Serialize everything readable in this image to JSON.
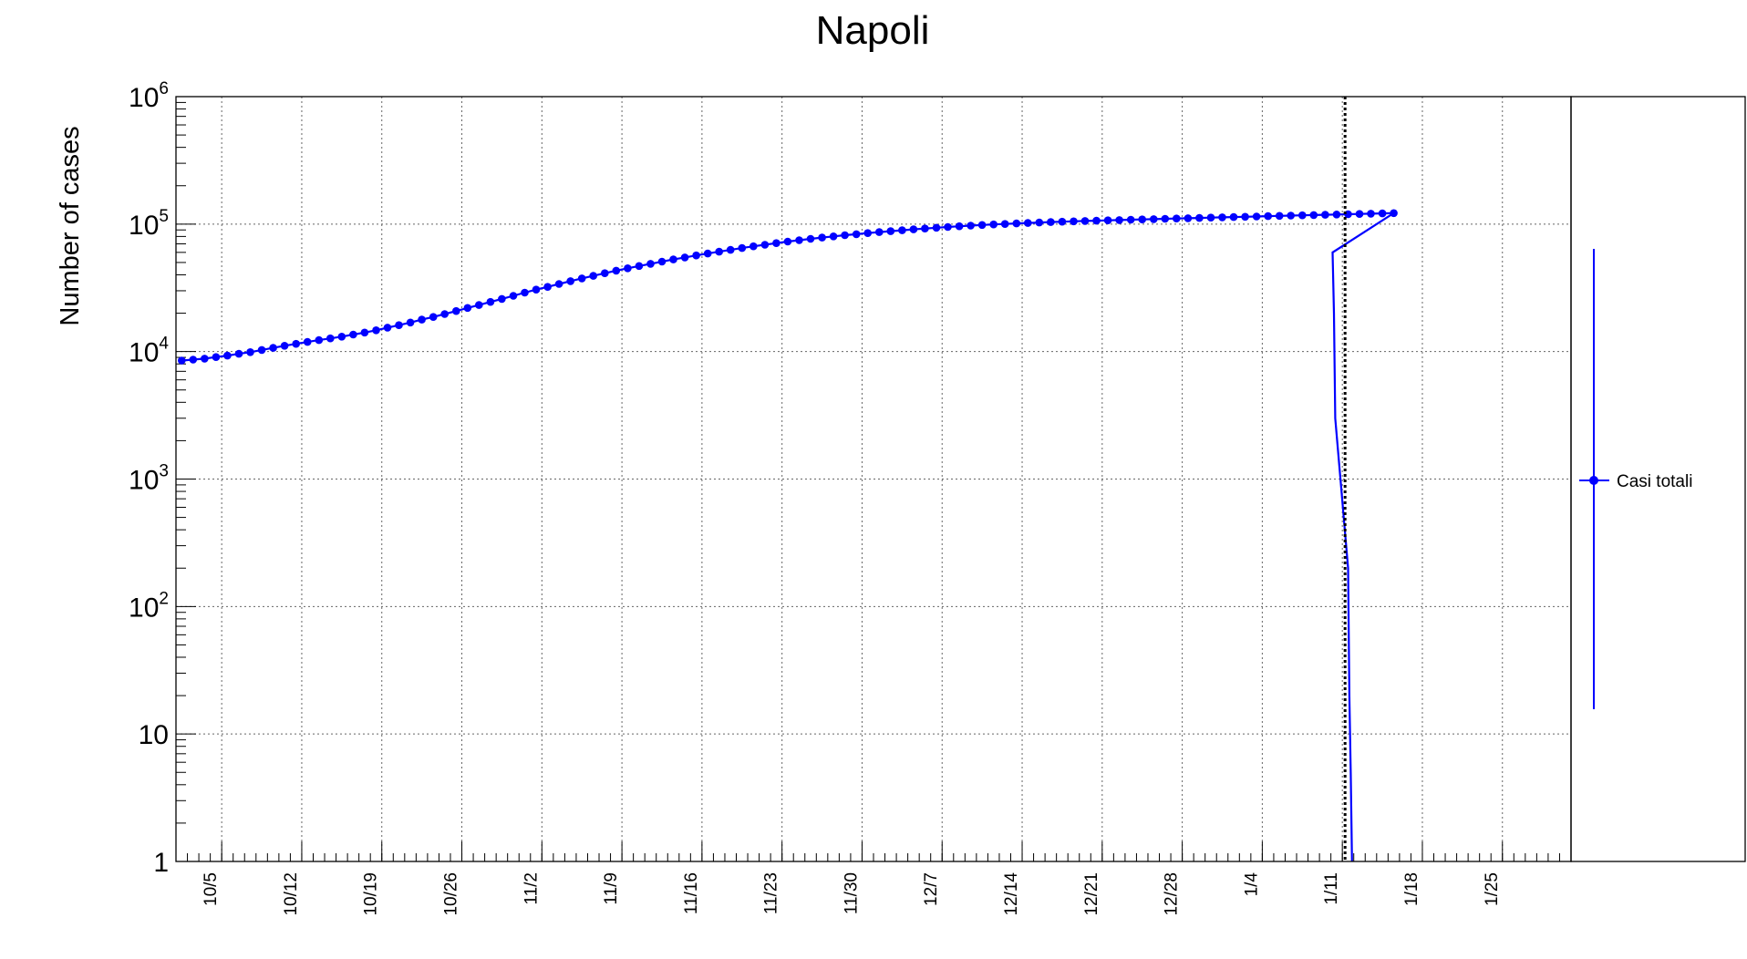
{
  "chart_data": {
    "type": "line",
    "title": "Napoli",
    "xlabel": "",
    "ylabel": "Number of cases",
    "y_scale": "log",
    "ylim": [
      1,
      1000000
    ],
    "xlim": [
      "2020-10-01",
      "2021-01-31"
    ],
    "grid": true,
    "x_tick_labels": [
      {
        "date": "2020-10-05",
        "label": "10/5"
      },
      {
        "date": "2020-10-12",
        "label": "10/12"
      },
      {
        "date": "2020-10-19",
        "label": "10/19"
      },
      {
        "date": "2020-10-26",
        "label": "10/26"
      },
      {
        "date": "2020-11-02",
        "label": "11/2"
      },
      {
        "date": "2020-11-09",
        "label": "11/9"
      },
      {
        "date": "2020-11-16",
        "label": "11/16"
      },
      {
        "date": "2020-11-23",
        "label": "11/23"
      },
      {
        "date": "2020-11-30",
        "label": "11/30"
      },
      {
        "date": "2020-12-07",
        "label": "12/7"
      },
      {
        "date": "2020-12-14",
        "label": "12/14"
      },
      {
        "date": "2020-12-21",
        "label": "12/21"
      },
      {
        "date": "2020-12-28",
        "label": "12/28"
      },
      {
        "date": "2021-01-04",
        "label": "1/4"
      },
      {
        "date": "2021-01-11",
        "label": "1/11"
      },
      {
        "date": "2021-01-18",
        "label": "1/18"
      },
      {
        "date": "2021-01-25",
        "label": "1/25"
      }
    ],
    "y_tick_labels": [
      {
        "value": 1,
        "base": "1",
        "sup": ""
      },
      {
        "value": 10,
        "base": "10",
        "sup": ""
      },
      {
        "value": 100,
        "base": "10",
        "sup": "2"
      },
      {
        "value": 1000,
        "base": "10",
        "sup": "3"
      },
      {
        "value": 10000,
        "base": "10",
        "sup": "4"
      },
      {
        "value": 100000,
        "base": "10",
        "sup": "5"
      },
      {
        "value": 1000000,
        "base": "10",
        "sup": "6"
      }
    ],
    "vertical_marker": "2021-01-11",
    "legend": {
      "position": "right",
      "entry": "Casi totali"
    },
    "series": [
      {
        "name": "Casi totali",
        "color": "#0000ff",
        "start_date": "2020-10-01",
        "values": [
          8500,
          8650,
          8800,
          9050,
          9300,
          9600,
          9900,
          10300,
          10700,
          11100,
          11500,
          11900,
          12300,
          12700,
          13100,
          13600,
          14100,
          14700,
          15400,
          16100,
          16900,
          17800,
          18700,
          19700,
          20800,
          22000,
          23200,
          24500,
          25900,
          27400,
          29000,
          30600,
          32200,
          33900,
          35700,
          37500,
          39300,
          41200,
          43100,
          45000,
          46900,
          48800,
          50800,
          52800,
          54800,
          56800,
          58800,
          60800,
          62800,
          64900,
          66900,
          68900,
          70900,
          72900,
          74800,
          76600,
          78400,
          80100,
          81800,
          83400,
          85000,
          86500,
          88000,
          89500,
          90900,
          92300,
          93600,
          94900,
          96100,
          97300,
          98400,
          99400,
          100300,
          101200,
          102100,
          102900,
          103700,
          104400,
          105100,
          105800,
          106400,
          107000,
          107600,
          108200,
          108800,
          109400,
          110000,
          110600,
          111200,
          111800,
          112400,
          113000,
          113600,
          114200,
          114800,
          115400,
          116000,
          116600,
          117200,
          117800,
          118400,
          119000,
          119600,
          120200,
          120800,
          121400,
          122000
        ],
        "tail": [
          {
            "date": "2021-01-10",
            "value": 60000
          },
          {
            "date": "2021-01-10",
            "value": 20000
          },
          {
            "date": "2021-01-10",
            "value": 3000
          },
          {
            "date": "2021-01-11",
            "value": 200
          },
          {
            "date": "2021-01-11",
            "value": 20
          },
          {
            "date": "2021-01-11",
            "value": 5
          },
          {
            "date": "2021-01-11",
            "value": 1
          }
        ]
      }
    ]
  }
}
